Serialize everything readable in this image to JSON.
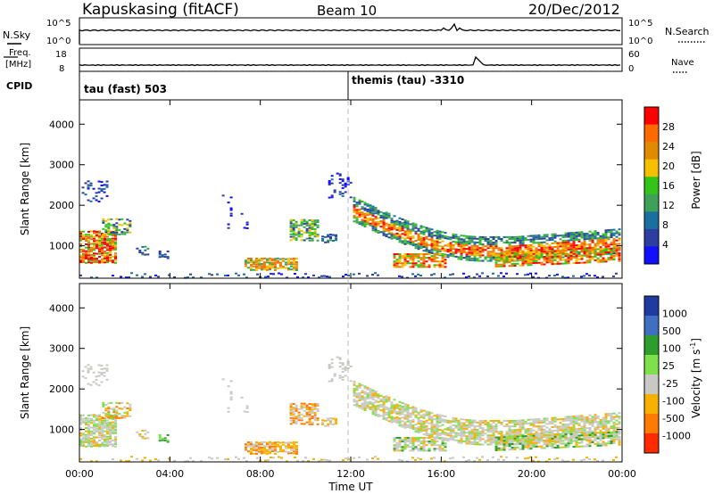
{
  "header": {
    "station": "Kapuskasing (fitACF)",
    "beam": "Beam 10",
    "date": "20/Dec/2012"
  },
  "noise_panel": {
    "left_label": "N.Sky",
    "right_label": "N.Search",
    "left_ticks": [
      "10^5",
      "10^0"
    ],
    "right_ticks": [
      "10^5",
      "10^0"
    ]
  },
  "freq_panel": {
    "left_label_1": "Freq.",
    "left_label_2": "[MHz]",
    "right_label": "Nave",
    "left_ticks": [
      "18",
      "8"
    ],
    "right_ticks": [
      "60",
      "0"
    ]
  },
  "cpid_panel": {
    "label": "CPID",
    "mode_1": "tau (fast) 503",
    "mode_2": "themis (tau) -3310"
  },
  "colorbars": {
    "power": {
      "label": "Power [dB]",
      "ticks": [
        "28",
        "24",
        "20",
        "16",
        "12",
        "8",
        "4"
      ],
      "colors": [
        "#ff0000",
        "#ff6a00",
        "#e08a00",
        "#f5c000",
        "#34c418",
        "#3fa05a",
        "#1a6fa0",
        "#2c3fa0",
        "#1010ff"
      ]
    },
    "velocity": {
      "label": "Velocity [m s",
      "label_superscript": "-1",
      "label_close": "]",
      "ticks": [
        "1000",
        "500",
        "100",
        "25",
        "-25",
        "-100",
        "-500",
        "-1000"
      ],
      "colors": [
        "#1e3ca0",
        "#3f6fc0",
        "#2e9d2e",
        "#7ee04a",
        "#c8c8c4",
        "#f7b000",
        "#ff7a00",
        "#ff2a00"
      ]
    }
  },
  "chart_data": [
    {
      "type": "heatmap",
      "name": "power",
      "ylabel": "Slant Range [km]",
      "ylim": [
        200,
        4600
      ],
      "yticks": [
        "1000",
        "2000",
        "3000",
        "4000"
      ],
      "xlim": [
        "00:00",
        "24:00"
      ],
      "value_unit": "dB"
    },
    {
      "type": "heatmap",
      "name": "velocity",
      "ylabel": "Slant Range [km]",
      "ylim": [
        200,
        4600
      ],
      "yticks": [
        "1000",
        "2000",
        "3000",
        "4000"
      ],
      "xlim": [
        "00:00",
        "24:00"
      ],
      "xlabel": "Time UT",
      "xticks": [
        "00:00",
        "04:00",
        "08:00",
        "12:00",
        "16:00",
        "20:00",
        "00:00"
      ],
      "value_unit": "m s-1"
    }
  ]
}
